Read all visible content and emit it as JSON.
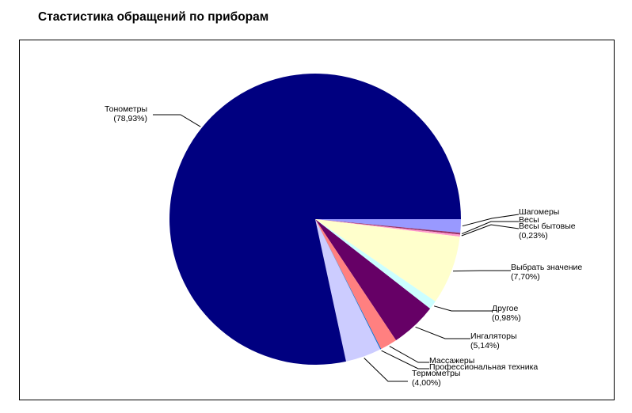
{
  "chart_data": {
    "type": "pie",
    "title": "Стастистика обращений по приборам",
    "slices": [
      {
        "name": "Шагомеры",
        "pct": "",
        "value": 1.5,
        "color": "#9999ff"
      },
      {
        "name": "Весы",
        "pct": "",
        "value": 0.2,
        "color": "#993366"
      },
      {
        "name": "Весы бытовые",
        "pct": "(0,23%)",
        "value": 0.23,
        "color": "#ff99cc"
      },
      {
        "name": "Выбрать значение",
        "pct": "(7,70%)",
        "value": 7.7,
        "color": "#ffffcc"
      },
      {
        "name": "Другое",
        "pct": "(0,98%)",
        "value": 0.98,
        "color": "#ccffff"
      },
      {
        "name": "Ингаляторы",
        "pct": "(5,14%)",
        "value": 5.14,
        "color": "#660066"
      },
      {
        "name": "Массажеры",
        "pct": "",
        "value": 1.9,
        "color": "#ff8080"
      },
      {
        "name": "Профессиональная техника",
        "pct": "",
        "value": 0.1,
        "color": "#0066cc"
      },
      {
        "name": "Термометры",
        "pct": "(4,00%)",
        "value": 4.0,
        "color": "#ccccff"
      },
      {
        "name": "Тонометры",
        "pct": "(78,93%)",
        "value": 78.93,
        "color": "#000080"
      }
    ]
  }
}
